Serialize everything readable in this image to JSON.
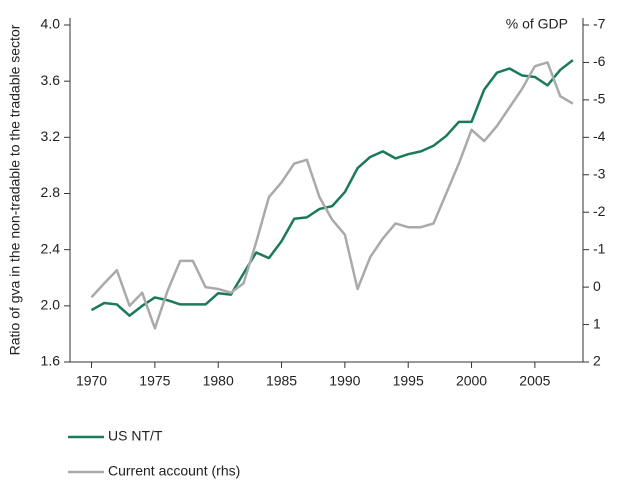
{
  "chart_data": {
    "type": "line",
    "y_label": "Ratio of gva in the non-tradable to the tradable sector",
    "y2_label": "% of GDP",
    "x": [
      1970,
      1971,
      1972,
      1973,
      1974,
      1975,
      1976,
      1977,
      1978,
      1979,
      1980,
      1981,
      1982,
      1983,
      1984,
      1985,
      1986,
      1987,
      1988,
      1989,
      1990,
      1991,
      1992,
      1993,
      1994,
      1995,
      1996,
      1997,
      1998,
      1999,
      2000,
      2001,
      2002,
      2003,
      2004,
      2005,
      2006,
      2007,
      2008
    ],
    "series": [
      {
        "name": "US  NT/T",
        "color": "#1a7a5a",
        "values": [
          1.97,
          2.02,
          2.01,
          1.93,
          2.0,
          2.06,
          2.04,
          2.01,
          2.01,
          2.01,
          2.09,
          2.08,
          2.23,
          2.38,
          2.34,
          2.46,
          2.62,
          2.63,
          2.69,
          2.71,
          2.81,
          2.98,
          3.06,
          3.1,
          3.05,
          3.08,
          3.1,
          3.14,
          3.21,
          3.31,
          3.31,
          3.54,
          3.66,
          3.69,
          3.64,
          3.63,
          3.57,
          3.68,
          3.75
        ]
      },
      {
        "name": "Current account (rhs)",
        "color": "#aaaaaa",
        "axis": "y2",
        "values": [
          0.27,
          -0.1,
          -0.45,
          0.5,
          0.15,
          1.1,
          0.1,
          -0.7,
          -0.7,
          0.0,
          0.05,
          0.15,
          -0.1,
          -1.2,
          -2.4,
          -2.8,
          -3.3,
          -3.4,
          -2.4,
          -1.8,
          -1.4,
          0.05,
          -0.8,
          -1.3,
          -1.7,
          -1.6,
          -1.6,
          -1.7,
          -2.5,
          -3.3,
          -4.2,
          -3.9,
          -4.3,
          -4.8,
          -5.3,
          -5.9,
          -6.0,
          -5.1,
          -4.9
        ]
      }
    ],
    "xlim": [
      1968.3,
      2008.8
    ],
    "xticks": [
      1970,
      1975,
      1980,
      1985,
      1990,
      1995,
      2000,
      2005
    ],
    "ylim": [
      1.6,
      4.0
    ],
    "yticks": [
      1.6,
      {
        "value": 2.0,
        "label": "2.0"
      },
      2.4,
      2.8,
      3.2,
      3.6,
      {
        "value": 4.0,
        "label": "4.0"
      }
    ],
    "y2lim": [
      2,
      -7
    ],
    "y2ticks": [
      2,
      1,
      0,
      -1,
      -2,
      -3,
      -4,
      -5,
      -6,
      -7
    ],
    "grid": false
  }
}
